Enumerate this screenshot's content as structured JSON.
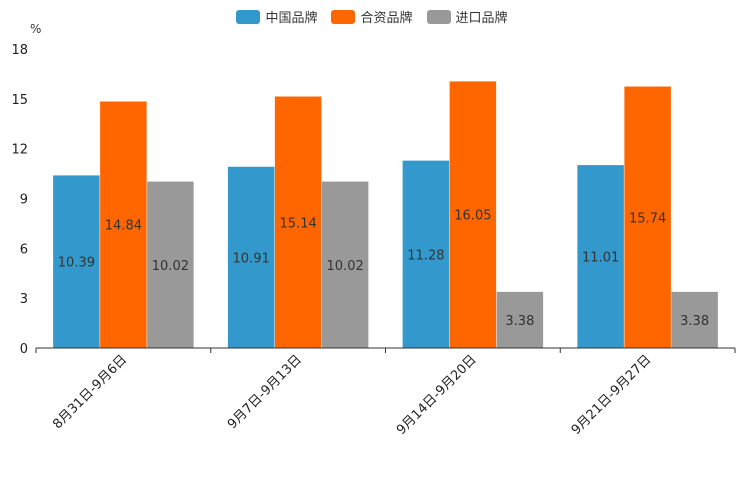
{
  "chart_data": {
    "type": "bar",
    "unit": "%",
    "categories": [
      "8月31日-9月6日",
      "9月7日-9月13日",
      "9月14日-9月20日",
      "9月21日-9月27日"
    ],
    "series": [
      {
        "name": "中国品牌",
        "color": "#3399CC",
        "values": [
          10.39,
          10.91,
          11.28,
          11.01
        ],
        "labels": [
          "10.39",
          "10.91",
          "11.28",
          "11.01"
        ]
      },
      {
        "name": "合资品牌",
        "color": "#FF6600",
        "values": [
          14.84,
          15.14,
          16.05,
          15.74
        ],
        "labels": [
          "14.84",
          "15.14",
          "16.05",
          "15.74"
        ]
      },
      {
        "name": "进口品牌",
        "color": "#999999",
        "values": [
          10.02,
          10.02,
          3.38,
          3.38
        ],
        "labels": [
          "10.02",
          "10.02",
          "3.38",
          "3.38"
        ]
      }
    ],
    "ylim": [
      0,
      18
    ],
    "yticks": [
      "0",
      "3",
      "6",
      "9",
      "12",
      "15",
      "18"
    ],
    "legend_position": "top-center",
    "grid": false
  }
}
